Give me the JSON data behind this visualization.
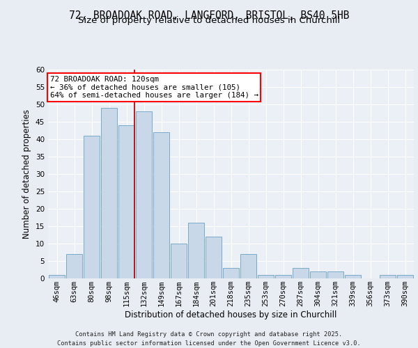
{
  "title_line1": "72, BROADOAK ROAD, LANGFORD, BRISTOL, BS40 5HB",
  "title_line2": "Size of property relative to detached houses in Churchill",
  "xlabel": "Distribution of detached houses by size in Churchill",
  "ylabel": "Number of detached properties",
  "categories": [
    "46sqm",
    "63sqm",
    "80sqm",
    "98sqm",
    "115sqm",
    "132sqm",
    "149sqm",
    "167sqm",
    "184sqm",
    "201sqm",
    "218sqm",
    "235sqm",
    "253sqm",
    "270sqm",
    "287sqm",
    "304sqm",
    "321sqm",
    "339sqm",
    "356sqm",
    "373sqm",
    "390sqm"
  ],
  "values": [
    1,
    7,
    41,
    49,
    44,
    48,
    42,
    10,
    16,
    12,
    3,
    7,
    1,
    1,
    3,
    2,
    2,
    1,
    0,
    1,
    1
  ],
  "bar_color": "#c8d8e8",
  "bar_edge_color": "#7aaac8",
  "vline_color": "#cc0000",
  "vline_x_index": 4,
  "annotation_text_line1": "72 BROADOAK ROAD: 120sqm",
  "annotation_text_line2": "← 36% of detached houses are smaller (105)",
  "annotation_text_line3": "64% of semi-detached houses are larger (184) →",
  "ylim": [
    0,
    60
  ],
  "yticks": [
    0,
    5,
    10,
    15,
    20,
    25,
    30,
    35,
    40,
    45,
    50,
    55,
    60
  ],
  "background_color": "#e8edf3",
  "plot_background_color": "#eaf0f6",
  "footer_text": "Contains HM Land Registry data © Crown copyright and database right 2025.\nContains public sector information licensed under the Open Government Licence v3.0.",
  "grid_color": "#ffffff",
  "title_fontsize": 10.5,
  "subtitle_fontsize": 9.5,
  "ylabel_fontsize": 8.5,
  "xlabel_fontsize": 8.5,
  "tick_fontsize": 7.5,
  "ann_fontsize": 7.8,
  "footer_fontsize": 6.2
}
